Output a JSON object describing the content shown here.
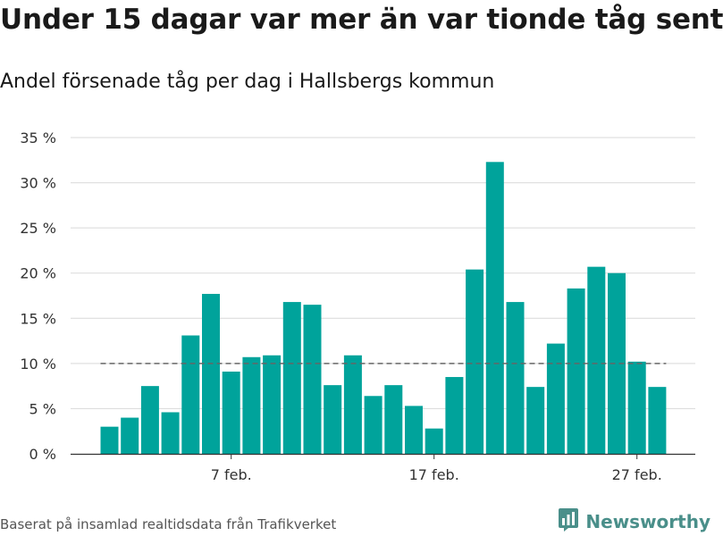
{
  "title": "Under 15 dagar var mer än var tionde tåg sent",
  "subtitle": "Andel försenade tåg per dag i Hallsbergs kommun",
  "footer": "Baserat på insamlad realtidsdata från Trafikverket",
  "brand": {
    "name": "Newsworthy",
    "icon": "bar-chart-logo-icon",
    "color": "#4a8f8a"
  },
  "colors": {
    "bar": "#00a39b",
    "grid": "#d9d9d9",
    "reference": "#666666"
  },
  "chart_data": {
    "type": "bar",
    "title": "Under 15 dagar var mer än var tionde tåg sent",
    "subtitle": "Andel försenade tåg per dag i Hallsbergs kommun",
    "xlabel": "",
    "ylabel": "",
    "x": [
      "1 feb.",
      "2 feb.",
      "3 feb.",
      "4 feb.",
      "5 feb.",
      "6 feb.",
      "7 feb.",
      "8 feb.",
      "9 feb.",
      "10 feb.",
      "11 feb.",
      "12 feb.",
      "13 feb.",
      "14 feb.",
      "15 feb.",
      "16 feb.",
      "17 feb.",
      "18 feb.",
      "19 feb.",
      "20 feb.",
      "21 feb.",
      "22 feb.",
      "23 feb.",
      "24 feb.",
      "25 feb.",
      "26 feb.",
      "27 feb.",
      "28 feb."
    ],
    "values": [
      3.0,
      4.0,
      7.5,
      4.6,
      13.1,
      17.7,
      9.1,
      10.7,
      10.9,
      16.8,
      16.5,
      7.6,
      10.9,
      6.4,
      7.6,
      5.3,
      2.8,
      8.5,
      20.4,
      32.3,
      16.8,
      7.4,
      12.2,
      18.3,
      20.7,
      20.0,
      10.2,
      7.4
    ],
    "ylim": [
      0,
      35
    ],
    "y_ticks": [
      0,
      5,
      10,
      15,
      20,
      25,
      30,
      35
    ],
    "y_tick_labels": [
      "0 %",
      "5 %",
      "10 %",
      "15 %",
      "20 %",
      "25 %",
      "30 %",
      "35 %"
    ],
    "x_ticks": [
      "7 feb.",
      "17 feb.",
      "27 feb."
    ],
    "reference_line": 10,
    "grid": true,
    "legend": "none"
  }
}
